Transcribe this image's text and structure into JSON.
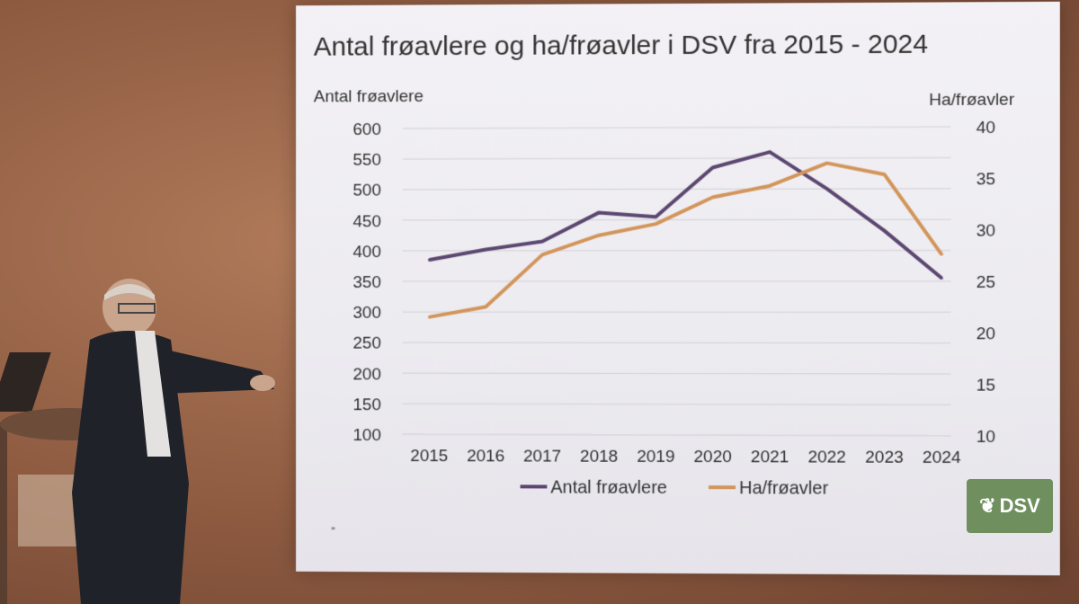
{
  "chart_data": {
    "type": "line",
    "title": "Antal frøavlere og ha/frøavler i DSV fra 2015 - 2024",
    "ylabel_left": "Antal frøavlere",
    "ylabel_right": "Ha/frøavler",
    "categories": [
      "2015",
      "2016",
      "2017",
      "2018",
      "2019",
      "2020",
      "2021",
      "2022",
      "2023",
      "2024"
    ],
    "y_left": {
      "min": 100,
      "max": 600,
      "ticks": [
        "600",
        "550",
        "500",
        "450",
        "400",
        "350",
        "300",
        "250",
        "200",
        "150",
        "100"
      ]
    },
    "y_right": {
      "min": 10,
      "max": 40,
      "ticks": [
        "40",
        "35",
        "30",
        "25",
        "20",
        "15",
        "10"
      ]
    },
    "series": [
      {
        "name": "Antal frøavlere",
        "axis": "left",
        "color": "#5b4770",
        "values": [
          385,
          402,
          415,
          462,
          455,
          535,
          560,
          500,
          432,
          355
        ]
      },
      {
        "name": "Ha/frøavler",
        "axis": "right",
        "color": "#d2955a",
        "values": [
          21.5,
          22.5,
          27.6,
          29.5,
          30.6,
          33.2,
          34.3,
          36.5,
          35.4,
          27.6
        ]
      }
    ],
    "grid": true,
    "legend": "bottom"
  },
  "logo": {
    "text": "DSV",
    "icon": "wheat-sprig-icon",
    "color": "#6f8f5f"
  }
}
